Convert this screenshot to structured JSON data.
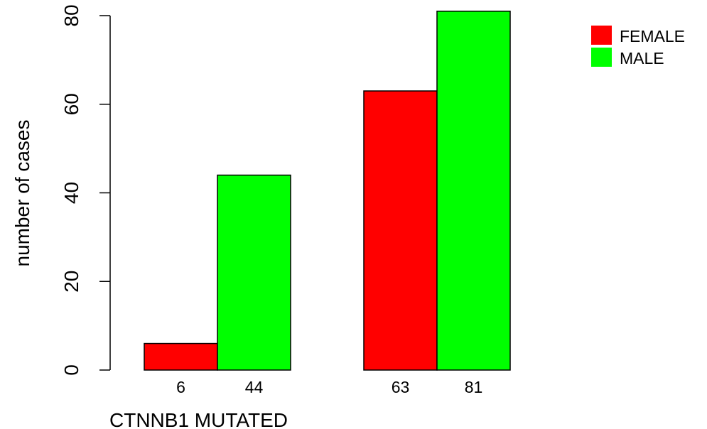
{
  "chart_data": {
    "type": "bar",
    "title": "",
    "xlabel": "CTNNB1 MUTATED",
    "ylabel": "number of cases",
    "ylim": [
      0,
      80
    ],
    "yticks": [
      0,
      20,
      40,
      60,
      80
    ],
    "grid": false,
    "legend_position": "top-right",
    "groups": [
      {
        "label": "",
        "bars": [
          {
            "series": "FEMALE",
            "value": 6,
            "label": "6"
          },
          {
            "series": "MALE",
            "value": 44,
            "label": "44"
          }
        ]
      },
      {
        "label": "",
        "bars": [
          {
            "series": "FEMALE",
            "value": 63,
            "label": "63"
          },
          {
            "series": "MALE",
            "value": 81,
            "label": "81"
          }
        ]
      }
    ],
    "series": [
      {
        "name": "FEMALE",
        "color": "#ff0000",
        "values": [
          6,
          63
        ]
      },
      {
        "name": "MALE",
        "color": "#00ff00",
        "values": [
          44,
          81
        ]
      }
    ]
  }
}
